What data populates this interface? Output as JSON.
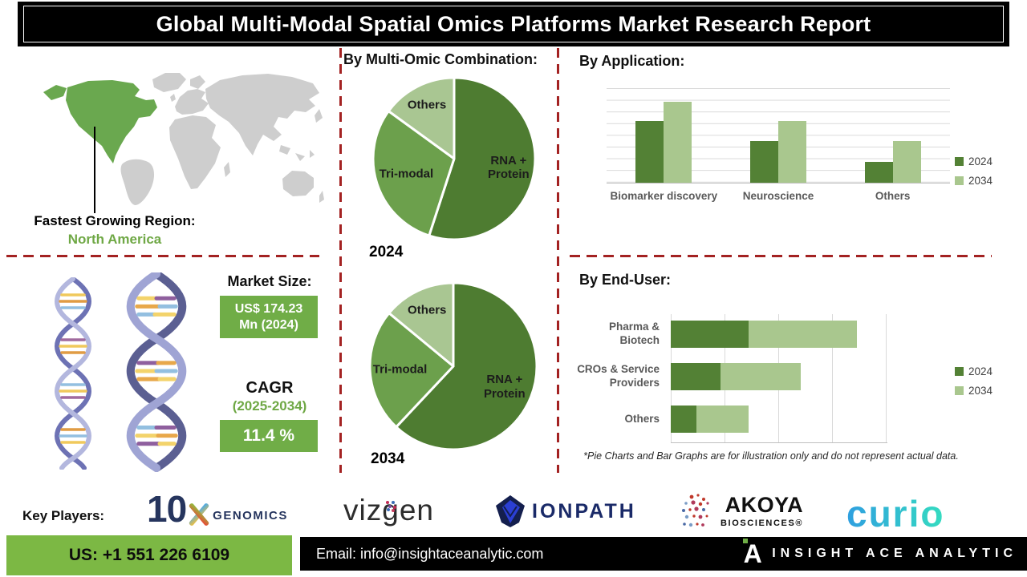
{
  "title": "Global Multi-Modal Spatial Omics Platforms Market Research Report",
  "region": {
    "label": "Fastest Growing Region:",
    "value": "North America"
  },
  "market": {
    "size_label": "Market Size:",
    "size_value": "US$ 174.23 Mn (2024)",
    "cagr_label": "CAGR",
    "cagr_period": "(2025-2034)",
    "cagr_value": "11.4 %"
  },
  "sections": {
    "combination": "By Multi-Omic Combination:",
    "application": "By Application:",
    "end_user": "By End-User:"
  },
  "disclaimer": "*Pie Charts and Bar Graphs are for illustration only and do not represent actual data.",
  "key_players": {
    "label": "Key Players:",
    "companies": [
      {
        "id": "10x-genomics",
        "num": "10",
        "suffix": "GENOMICS"
      },
      {
        "id": "vizgen",
        "parts": [
          "viz",
          "g",
          "en"
        ]
      },
      {
        "id": "ionpath",
        "text": "IONPATH"
      },
      {
        "id": "akoya",
        "text": "AKOYA",
        "subtext": "BIOSCIENCES®"
      },
      {
        "id": "curio",
        "text": "curio"
      }
    ]
  },
  "footer": {
    "phone": "US: +1 551 226 6109",
    "email": "Email: info@insightaceanalytic.com",
    "brand": "INSIGHT ACE ANALYTIC",
    "brand_glyph": "A"
  },
  "colors": {
    "accent_dark_red": "#a32222",
    "brand_green_box": "#70ad47",
    "footer_green": "#7cb844",
    "text_green": "#6fa845",
    "map_highlight_green": "#6aa84f",
    "map_gray": "#cecece"
  },
  "chart_data": [
    {
      "type": "pie",
      "title": "2024",
      "labels": [
        "RNA + Protein",
        "Tri-modal",
        "Others"
      ],
      "values": [
        55,
        30,
        15
      ],
      "colors": [
        "#4e7c31",
        "#6ca04c",
        "#a9c692"
      ],
      "label_radius": [
        0.68,
        0.62,
        0.74
      ],
      "note": "illustrative shares, clockwise from 12 o'clock"
    },
    {
      "type": "pie",
      "title": "2034",
      "labels": [
        "RNA + Protein",
        "Tri-modal",
        "Others"
      ],
      "values": [
        62,
        24,
        14
      ],
      "colors": [
        "#4e7c31",
        "#6ca04c",
        "#a9c692"
      ],
      "label_radius": [
        0.66,
        0.64,
        0.74
      ],
      "note": "illustrative shares, clockwise from 12 o'clock"
    },
    {
      "type": "bar",
      "title": "By Application:",
      "categories": [
        "Biomarker discovery",
        "Neuroscience",
        "Others"
      ],
      "series": [
        {
          "name": "2024",
          "values": [
            65,
            44,
            22
          ]
        },
        {
          "name": "2034",
          "values": [
            86,
            65,
            44
          ]
        }
      ],
      "colors": [
        "#538135",
        "#a9c78e"
      ],
      "ylim": [
        0,
        100
      ],
      "grid": true,
      "legend_position": "right"
    },
    {
      "type": "stacked-bar-horizontal",
      "title": "By End-User:",
      "categories": [
        "Pharma & Biotech",
        "CROs & Service Providers",
        "Others"
      ],
      "series": [
        {
          "name": "2024",
          "values": [
            36,
            23,
            12
          ]
        },
        {
          "name": "2034",
          "values": [
            50,
            37,
            24
          ]
        }
      ],
      "colors": [
        "#538135",
        "#a9c78e"
      ],
      "xlim": [
        0,
        100
      ],
      "grid": true,
      "legend_position": "right"
    }
  ]
}
